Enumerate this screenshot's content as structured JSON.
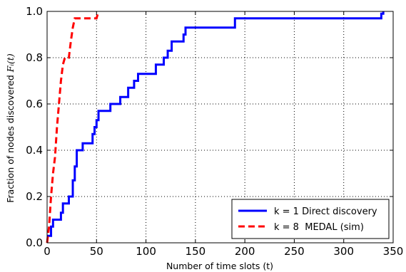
{
  "chart_data": {
    "type": "line",
    "title": "",
    "xlabel": "Number of time slots (t)",
    "ylabel": "Fraction of nodes discovered F_i(t)",
    "xlim": [
      0,
      350
    ],
    "ylim": [
      0,
      1.0
    ],
    "x_ticks": [
      0,
      50,
      100,
      150,
      200,
      250,
      300,
      350
    ],
    "y_ticks": [
      0.0,
      0.2,
      0.4,
      0.6,
      0.8,
      1.0
    ],
    "x_tick_labels": [
      "0",
      "50",
      "100",
      "150",
      "200",
      "250",
      "300",
      "350"
    ],
    "y_tick_labels": [
      "0.0",
      "0.2",
      "0.4",
      "0.6",
      "0.8",
      "1.0"
    ],
    "grid": true,
    "legend_position": "bottom-right",
    "series": [
      {
        "name": "k = 1 Direct discovery",
        "color": "#0000ff",
        "style": "solid",
        "step": true,
        "x": [
          0,
          2,
          4,
          6,
          10,
          14,
          16,
          18,
          22,
          24,
          26,
          28,
          30,
          34,
          36,
          40,
          44,
          46,
          48,
          50,
          52,
          54,
          58,
          64,
          68,
          72,
          74,
          78,
          82,
          88,
          92,
          94,
          104,
          110,
          112,
          118,
          122,
          124,
          126,
          130,
          134,
          138,
          140,
          142,
          186,
          190,
          336,
          338,
          340
        ],
        "y": [
          0.03,
          0.03,
          0.07,
          0.1,
          0.1,
          0.13,
          0.17,
          0.17,
          0.2,
          0.2,
          0.27,
          0.33,
          0.4,
          0.4,
          0.43,
          0.43,
          0.43,
          0.47,
          0.5,
          0.53,
          0.57,
          0.57,
          0.57,
          0.6,
          0.6,
          0.6,
          0.63,
          0.63,
          0.67,
          0.7,
          0.73,
          0.73,
          0.73,
          0.77,
          0.77,
          0.8,
          0.83,
          0.83,
          0.87,
          0.87,
          0.87,
          0.9,
          0.93,
          0.93,
          0.93,
          0.97,
          0.97,
          0.99,
          1.0
        ]
      },
      {
        "name": "k = 8  MEDAL (sim)",
        "color": "#ff0000",
        "style": "dashed",
        "step": false,
        "x": [
          0,
          2,
          4,
          6,
          8,
          10,
          12,
          14,
          16,
          18,
          20,
          22,
          24,
          26,
          28,
          30,
          32,
          34,
          50,
          52
        ],
        "y": [
          0.0,
          0.07,
          0.2,
          0.3,
          0.37,
          0.5,
          0.6,
          0.7,
          0.77,
          0.8,
          0.8,
          0.8,
          0.87,
          0.93,
          0.97,
          0.97,
          0.97,
          0.97,
          0.97,
          1.0
        ]
      }
    ]
  }
}
